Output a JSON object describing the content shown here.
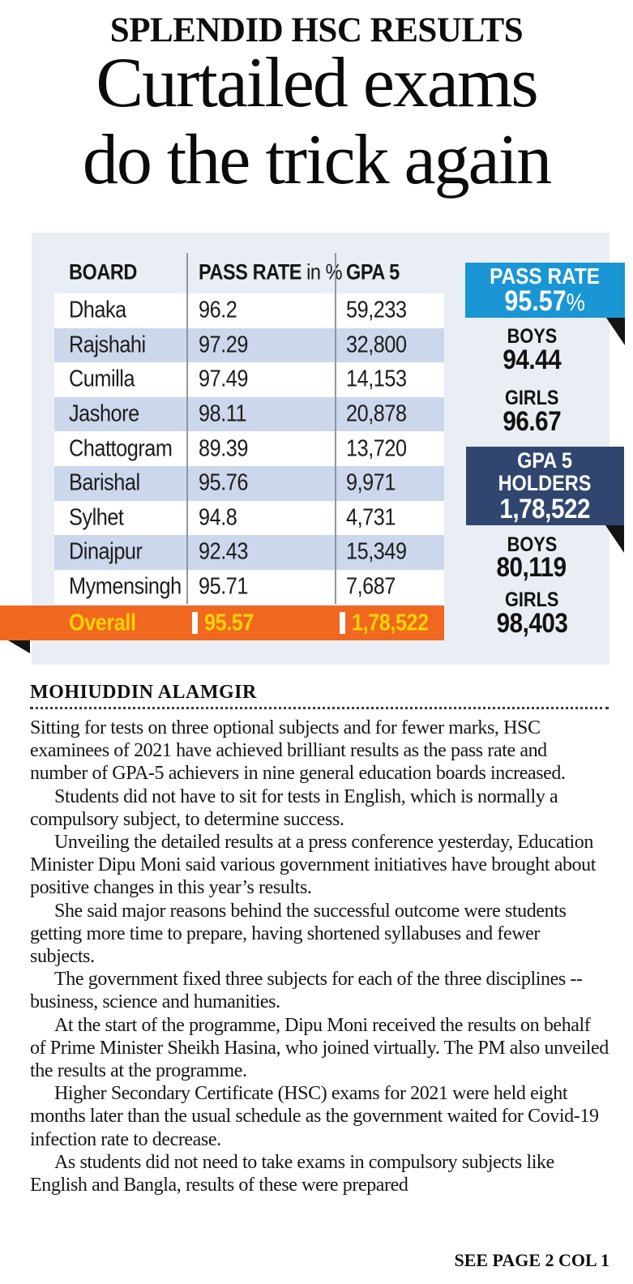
{
  "masthead": {
    "kicker": "SPLENDID HSC RESULTS",
    "headline_line1": "Curtailed exams",
    "headline_line2": "do the trick again"
  },
  "infographic": {
    "table": {
      "col_board": "BOARD",
      "col_pass_rate": "PASS RATE",
      "col_pass_rate_suffix": " in %",
      "col_gpa5": "GPA 5",
      "rows": [
        {
          "board": "Dhaka",
          "pass_rate": "96.2",
          "gpa5": "59,233"
        },
        {
          "board": "Rajshahi",
          "pass_rate": "97.29",
          "gpa5": "32,800"
        },
        {
          "board": "Cumilla",
          "pass_rate": "97.49",
          "gpa5": "14,153"
        },
        {
          "board": "Jashore",
          "pass_rate": "98.11",
          "gpa5": "20,878"
        },
        {
          "board": "Chattogram",
          "pass_rate": "89.39",
          "gpa5": "13,720"
        },
        {
          "board": "Barishal",
          "pass_rate": "95.76",
          "gpa5": "9,971"
        },
        {
          "board": "Sylhet",
          "pass_rate": "94.8",
          "gpa5": "4,731"
        },
        {
          "board": "Dinajpur",
          "pass_rate": "92.43",
          "gpa5": "15,349"
        },
        {
          "board": "Mymensingh",
          "pass_rate": "95.71",
          "gpa5": "7,687"
        }
      ],
      "overall": {
        "label": "Overall",
        "pass_rate": "95.57",
        "gpa5": "1,78,522"
      }
    },
    "summary": {
      "pass_rate": {
        "title": "PASS RATE",
        "value": "95.57",
        "unit": "%",
        "boys_label": "BOYS",
        "boys": "94.44",
        "girls_label": "GIRLS",
        "girls": "96.67"
      },
      "gpa5": {
        "title_line1": "GPA 5",
        "title_line2": "HOLDERS",
        "value": "1,78,522",
        "boys_label": "BOYS",
        "boys": "80,119",
        "girls_label": "GIRLS",
        "girls": "98,403"
      }
    },
    "colors": {
      "panel_bg": "#e9eef5",
      "row_stripe": "#ccd7ec",
      "accent_blue": "#1a96d4",
      "accent_navy": "#30466f",
      "accent_orange": "#f0671f",
      "accent_yellow": "#fdd303"
    }
  },
  "article": {
    "byline": "MOHIUDDIN ALAMGIR",
    "paragraphs": [
      "Sitting for tests on three optional subjects and for fewer marks, HSC examinees of 2021 have achieved brilliant results as the pass rate and number of GPA-5 achievers in nine general education boards increased.",
      "Students did not have to sit for tests in English, which is normally a compulsory subject, to determine success.",
      "Unveiling the detailed results at a press conference yesterday, Education Minister Dipu Moni said various government initiatives have brought about positive changes in this year’s results.",
      "She said major reasons behind the successful outcome were students getting more time to prepare, having shortened syllabuses and fewer subjects.",
      "The government fixed three subjects for each of the three disciplines -- business, science and humanities.",
      "At the start of the programme, Dipu Moni received the results on behalf of Prime Minister Sheikh Hasina, who joined virtually. The PM also unveiled the results at the programme.",
      "Higher Secondary Certificate (HSC) exams for 2021 were held eight months later than the usual schedule as the government waited for Covid-19 infection rate to decrease.",
      "As students did not need to take exams in compulsory subjects like English and Bangla, results of these were prepared"
    ],
    "continuation": "SEE PAGE 2 COL 1"
  },
  "chart_data": {
    "type": "table",
    "title": "SPLENDID HSC RESULTS",
    "columns": [
      "BOARD",
      "PASS RATE in %",
      "GPA 5"
    ],
    "rows": [
      [
        "Dhaka",
        96.2,
        59233
      ],
      [
        "Rajshahi",
        97.29,
        32800
      ],
      [
        "Cumilla",
        97.49,
        14153
      ],
      [
        "Jashore",
        98.11,
        20878
      ],
      [
        "Chattogram",
        89.39,
        13720
      ],
      [
        "Barishal",
        95.76,
        9971
      ],
      [
        "Sylhet",
        94.8,
        4731
      ],
      [
        "Dinajpur",
        92.43,
        15349
      ],
      [
        "Mymensingh",
        95.71,
        7687
      ]
    ],
    "overall": {
      "board": "Overall",
      "pass_rate": 95.57,
      "gpa5": 178522
    },
    "summary": {
      "pass_rate_pct": 95.57,
      "pass_rate_boys": 94.44,
      "pass_rate_girls": 96.67,
      "gpa5_holders": 178522,
      "gpa5_boys": 80119,
      "gpa5_girls": 98403
    }
  }
}
